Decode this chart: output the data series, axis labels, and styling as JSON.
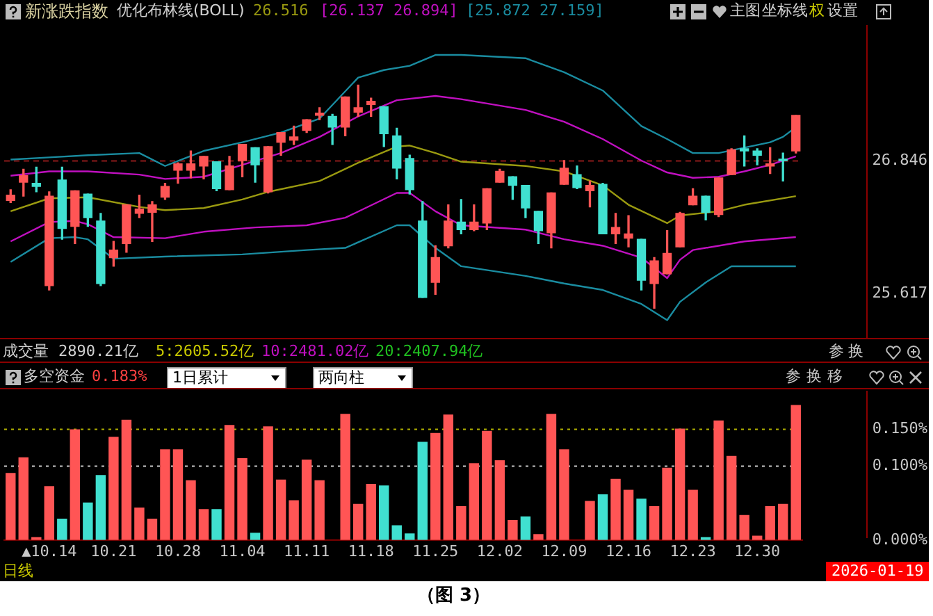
{
  "chart_data": [
    {
      "type": "candlestick",
      "title": "新涨跌指数",
      "subtitle": "优化布林线(BOLL)",
      "annotations": [
        "26.516",
        "[26.137 26.894]",
        "[25.872 27.159]",
        "主图",
        "坐标线",
        "权",
        "设置",
        "成交量",
        "2890.21亿",
        "5:2605.52亿",
        "10:2481.02亿",
        "20:2407.94亿",
        "参",
        "换"
      ],
      "categories": [
        null,
        null,
        null,
        null,
        null,
        null,
        null,
        null,
        null,
        null,
        null,
        null,
        null,
        null,
        null,
        null,
        null,
        null,
        null,
        null,
        null,
        null,
        null,
        null,
        null,
        null,
        null,
        null,
        null,
        null,
        null,
        null,
        null,
        null,
        null,
        null,
        null,
        null,
        null,
        null,
        null,
        null,
        null,
        null,
        null,
        null,
        null,
        null,
        null,
        null,
        null,
        null,
        null,
        null,
        null,
        null,
        null,
        null,
        null,
        null,
        null,
        null
      ],
      "ylim": [
        25.2,
        28.1
      ],
      "yticks": [
        25.617,
        26.846
      ],
      "tick_labels": "y",
      "ref_lines": [
        {
          "axis": "y",
          "value": 26.846,
          "color": "#8b1a1a",
          "line_style": "dashed"
        }
      ],
      "series": [
        {
          "type": "line",
          "color": "#1a8ca0",
          "values": [
            26.86,
            null,
            null,
            26.88,
            null,
            null,
            26.9,
            null,
            null,
            null,
            26.92,
            null,
            26.8,
            null,
            null,
            26.94,
            null,
            null,
            27.02,
            null,
            null,
            27.11,
            null,
            null,
            27.24,
            null,
            null,
            27.62,
            null,
            27.69,
            null,
            27.73,
            null,
            27.83,
            null,
            27.83,
            null,
            null,
            null,
            null,
            27.8,
            null,
            null,
            27.67,
            null,
            null,
            27.5,
            null,
            null,
            27.17,
            null,
            27.05,
            null,
            26.92,
            null,
            26.92,
            null,
            26.97,
            null,
            27.02,
            27.07,
            27.16
          ]
        },
        {
          "type": "line",
          "color": "#c010c0",
          "values": [
            26.71,
            null,
            null,
            26.75,
            null,
            null,
            26.75,
            null,
            null,
            null,
            26.72,
            null,
            26.68,
            null,
            null,
            26.7,
            null,
            null,
            26.81,
            null,
            null,
            26.92,
            null,
            null,
            27.07,
            null,
            null,
            27.26,
            null,
            null,
            27.41,
            null,
            null,
            27.45,
            null,
            27.42,
            null,
            null,
            null,
            null,
            27.32,
            null,
            null,
            27.21,
            null,
            null,
            27.05,
            null,
            null,
            26.85,
            null,
            26.74,
            null,
            26.69,
            null,
            26.7,
            null,
            26.75,
            null,
            26.81,
            null,
            26.89
          ]
        },
        {
          "type": "line",
          "color": "#9a9a10",
          "values": [
            26.38,
            null,
            null,
            26.5,
            null,
            null,
            26.51,
            null,
            null,
            null,
            26.42,
            null,
            26.39,
            null,
            null,
            26.41,
            null,
            null,
            26.49,
            null,
            26.56,
            null,
            null,
            null,
            26.66,
            null,
            null,
            26.83,
            null,
            null,
            26.98,
            26.99,
            null,
            26.92,
            null,
            26.84,
            null,
            null,
            null,
            null,
            26.8,
            null,
            null,
            26.75,
            null,
            null,
            26.62,
            null,
            26.44,
            null,
            null,
            26.27,
            26.34,
            null,
            null,
            26.38,
            null,
            26.44,
            null,
            null,
            null,
            26.52
          ]
        },
        {
          "type": "line",
          "color": "#c010c0",
          "values": [
            26.1,
            null,
            null,
            26.28,
            null,
            26.29,
            26.26,
            null,
            26.14,
            null,
            null,
            null,
            26.13,
            null,
            null,
            26.19,
            null,
            null,
            null,
            26.23,
            null,
            null,
            null,
            26.25,
            null,
            null,
            26.32,
            null,
            null,
            null,
            26.55,
            26.55,
            null,
            26.38,
            null,
            26.25,
            null,
            null,
            null,
            null,
            26.21,
            null,
            null,
            26.12,
            null,
            null,
            26.06,
            null,
            null,
            25.95,
            null,
            25.76,
            25.93,
            26.02,
            null,
            null,
            null,
            26.1,
            null,
            null,
            null,
            26.14
          ]
        },
        {
          "type": "line",
          "color": "#1a8ca0",
          "values": [
            25.91,
            null,
            null,
            26.13,
            null,
            26.14,
            26.12,
            null,
            25.94,
            null,
            null,
            null,
            25.96,
            null,
            null,
            null,
            null,
            null,
            25.98,
            null,
            null,
            null,
            null,
            26.02,
            null,
            null,
            26.04,
            null,
            null,
            null,
            26.25,
            26.25,
            null,
            26.04,
            null,
            25.87,
            null,
            null,
            null,
            null,
            25.78,
            null,
            null,
            25.71,
            null,
            null,
            25.65,
            null,
            null,
            25.52,
            null,
            25.37,
            25.54,
            null,
            25.72,
            null,
            25.87,
            null,
            null,
            null,
            null,
            25.87
          ]
        },
        {
          "type": "candlestick",
          "ohlc": [
            [
              26.48,
              26.58,
              26.46,
              26.53
            ],
            [
              26.65,
              26.77,
              26.52,
              26.71
            ],
            [
              26.64,
              26.79,
              26.56,
              26.61
            ],
            [
              25.69,
              26.56,
              25.65,
              26.52
            ],
            [
              26.67,
              26.79,
              26.12,
              26.22
            ],
            [
              26.24,
              26.57,
              26.08,
              26.57
            ],
            [
              26.54,
              26.54,
              26.24,
              26.32
            ],
            [
              26.29,
              26.36,
              25.69,
              25.71
            ],
            [
              25.95,
              26.1,
              25.87,
              26.02
            ],
            [
              26.08,
              26.44,
              26.0,
              26.44
            ],
            [
              26.36,
              26.53,
              26.32,
              26.4
            ],
            [
              26.37,
              26.47,
              26.1,
              26.44
            ],
            [
              26.51,
              26.64,
              26.49,
              26.61
            ],
            [
              26.76,
              26.83,
              26.64,
              26.82
            ],
            [
              26.76,
              26.94,
              26.69,
              26.82
            ],
            [
              26.8,
              26.89,
              26.68,
              26.89
            ],
            [
              26.84,
              26.84,
              26.57,
              26.59
            ],
            [
              26.58,
              26.89,
              26.58,
              26.8
            ],
            [
              26.85,
              27.0,
              26.7,
              27.0
            ],
            [
              26.97,
              26.97,
              26.65,
              26.81
            ],
            [
              26.56,
              26.98,
              26.55,
              26.98
            ],
            [
              27.02,
              27.11,
              26.9,
              27.11
            ],
            [
              27.04,
              27.17,
              27.0,
              27.07
            ],
            [
              27.13,
              27.23,
              27.11,
              27.23
            ],
            [
              27.27,
              27.34,
              27.23,
              27.29
            ],
            [
              27.26,
              27.28,
              27.0,
              27.16
            ],
            [
              27.16,
              27.44,
              27.08,
              27.44
            ],
            [
              27.3,
              27.55,
              27.26,
              27.34
            ],
            [
              27.37,
              27.43,
              27.26,
              27.4
            ],
            [
              27.35,
              27.35,
              26.98,
              27.1
            ],
            [
              27.08,
              27.15,
              26.68,
              26.78
            ],
            [
              26.87,
              26.9,
              26.54,
              26.58
            ],
            [
              26.29,
              26.47,
              25.58,
              25.58
            ],
            [
              25.72,
              26.06,
              25.61,
              25.95
            ],
            [
              26.06,
              26.44,
              26.04,
              26.29
            ],
            [
              26.28,
              26.49,
              26.17,
              26.21
            ],
            [
              26.21,
              26.44,
              26.2,
              26.28
            ],
            [
              26.27,
              26.59,
              26.21,
              26.59
            ],
            [
              26.65,
              26.77,
              26.65,
              26.75
            ],
            [
              26.7,
              26.7,
              26.49,
              26.62
            ],
            [
              26.62,
              26.62,
              26.32,
              26.41
            ],
            [
              26.38,
              26.38,
              26.08,
              26.2
            ],
            [
              26.18,
              26.55,
              26.04,
              26.55
            ],
            [
              26.63,
              26.85,
              26.63,
              26.78
            ],
            [
              26.72,
              26.8,
              26.59,
              26.6
            ],
            [
              26.57,
              26.66,
              26.42,
              26.62
            ],
            [
              26.63,
              26.64,
              26.17,
              26.17
            ],
            [
              26.17,
              26.36,
              26.08,
              26.23
            ],
            [
              26.13,
              26.34,
              26.05,
              26.17
            ],
            [
              26.12,
              26.12,
              25.65,
              25.74
            ],
            [
              25.71,
              25.95,
              25.48,
              25.92
            ],
            [
              25.8,
              26.2,
              25.8,
              25.99
            ],
            [
              26.05,
              26.37,
              26.05,
              26.36
            ],
            [
              26.44,
              26.59,
              26.44,
              26.52
            ],
            [
              26.52,
              26.52,
              26.3,
              26.37
            ],
            [
              26.35,
              26.69,
              26.33,
              26.69
            ],
            [
              26.72,
              26.96,
              26.72,
              26.95
            ],
            [
              26.96,
              27.08,
              26.8,
              26.94
            ],
            [
              26.94,
              26.96,
              26.81,
              26.9
            ],
            [
              26.8,
              26.97,
              26.73,
              26.82
            ],
            [
              26.86,
              26.92,
              26.66,
              26.85
            ],
            [
              26.94,
              27.27,
              26.92,
              27.27
            ]
          ],
          "colors": [
            "#ff5555",
            "#ff5555",
            "#40e0d0",
            "#ff5555",
            "#40e0d0",
            "#ff5555",
            "#40e0d0",
            "#40e0d0",
            "#ff5555",
            "#ff5555",
            "#ff5555",
            "#ff5555",
            "#ff5555",
            "#ff5555",
            "#ff5555",
            "#ff5555",
            "#40e0d0",
            "#ff5555",
            "#ff5555",
            "#40e0d0",
            "#ff5555",
            "#ff5555",
            "#ff5555",
            "#ff5555",
            "#ff5555",
            "#40e0d0",
            "#ff5555",
            "#ff5555",
            "#ff5555",
            "#40e0d0",
            "#40e0d0",
            "#40e0d0",
            "#40e0d0",
            "#ff5555",
            "#ff5555",
            "#40e0d0",
            "#ff5555",
            "#ff5555",
            "#ff5555",
            "#40e0d0",
            "#40e0d0",
            "#40e0d0",
            "#ff5555",
            "#ff5555",
            "#40e0d0",
            "#ff5555",
            "#40e0d0",
            "#ff5555",
            "#ff5555",
            "#40e0d0",
            "#ff5555",
            "#ff5555",
            "#ff5555",
            "#ff5555",
            "#40e0d0",
            "#ff5555",
            "#ff5555",
            "#40e0d0",
            "#40e0d0",
            "#ff5555",
            "#40e0d0",
            "#ff5555"
          ]
        }
      ]
    },
    {
      "type": "bar",
      "title": "多空资金",
      "annotations": [
        "0.183%",
        "1日累计",
        "两向柱",
        "参",
        "换",
        "移",
        "日线",
        "2026-01-19",
        "（图 3）"
      ],
      "categories": [
        null,
        null,
        null,
        "▲10.14",
        null,
        null,
        null,
        null,
        "10.21",
        null,
        null,
        null,
        null,
        "10.28",
        null,
        null,
        null,
        null,
        "11.04",
        null,
        null,
        null,
        null,
        "11.11",
        null,
        null,
        null,
        null,
        "11.18",
        null,
        null,
        null,
        null,
        "11.25",
        null,
        null,
        null,
        null,
        "12.02",
        null,
        null,
        null,
        null,
        "12.09",
        null,
        null,
        null,
        null,
        "12.16",
        null,
        null,
        null,
        null,
        "12.23",
        null,
        null,
        null,
        null,
        "12.30",
        null,
        null,
        null
      ],
      "values": [
        0.091,
        0.112,
        0.004,
        0.073,
        0.029,
        0.15,
        0.051,
        0.088,
        0.14,
        0.163,
        0.044,
        0.029,
        0.123,
        0.123,
        0.081,
        0.042,
        0.042,
        0.156,
        0.111,
        0.01,
        0.154,
        0.082,
        0.054,
        0.109,
        0.081,
        0,
        0.171,
        0.049,
        0.076,
        0.074,
        0.02,
        0.009,
        0.133,
        0.145,
        0.17,
        0.046,
        0.104,
        0.148,
        0.108,
        0.027,
        0.032,
        0.008,
        0.171,
        0.123,
        0,
        0.053,
        0.062,
        0.083,
        0.068,
        0.056,
        0.046,
        0.098,
        0.151,
        0.068,
        0.004,
        0.162,
        0.114,
        0.034,
        0.006,
        0.046,
        0.049,
        0.183
      ],
      "colors": [
        "#ff5555",
        "#ff5555",
        "#ff5555",
        "#ff5555",
        "#40e0d0",
        "#ff5555",
        "#40e0d0",
        "#40e0d0",
        "#ff5555",
        "#ff5555",
        "#ff5555",
        "#ff5555",
        "#ff5555",
        "#ff5555",
        "#ff5555",
        "#ff5555",
        "#40e0d0",
        "#ff5555",
        "#ff5555",
        "#40e0d0",
        "#ff5555",
        "#ff5555",
        "#ff5555",
        "#ff5555",
        "#ff5555",
        "#ff5555",
        "#ff5555",
        "#ff5555",
        "#ff5555",
        "#40e0d0",
        "#40e0d0",
        "#40e0d0",
        "#40e0d0",
        "#ff5555",
        "#ff5555",
        "#ff5555",
        "#ff5555",
        "#ff5555",
        "#ff5555",
        "#ff5555",
        "#40e0d0",
        "#ff5555",
        "#ff5555",
        "#ff5555",
        "#ff5555",
        "#ff5555",
        "#40e0d0",
        "#ff5555",
        "#ff5555",
        "#40e0d0",
        "#ff5555",
        "#ff5555",
        "#ff5555",
        "#ff5555",
        "#40e0d0",
        "#ff5555",
        "#ff5555",
        "#ff5555",
        "#ff5555",
        "#ff5555",
        "#ff5555",
        "#ff5555"
      ],
      "ylim": [
        0,
        0.203
      ],
      "yticks": [
        {
          "value": 0,
          "label": "0.000%"
        },
        {
          "value": 0.1,
          "label": "0.100%"
        },
        {
          "value": 0.15,
          "label": "0.150%"
        }
      ],
      "ref_lines": [
        {
          "axis": "y",
          "value": 0.1,
          "color": "#c8c8c8",
          "line_style": "dotted"
        },
        {
          "axis": "y",
          "value": 0.15,
          "color": "#b0b000",
          "line_style": "dotted"
        }
      ]
    }
  ]
}
